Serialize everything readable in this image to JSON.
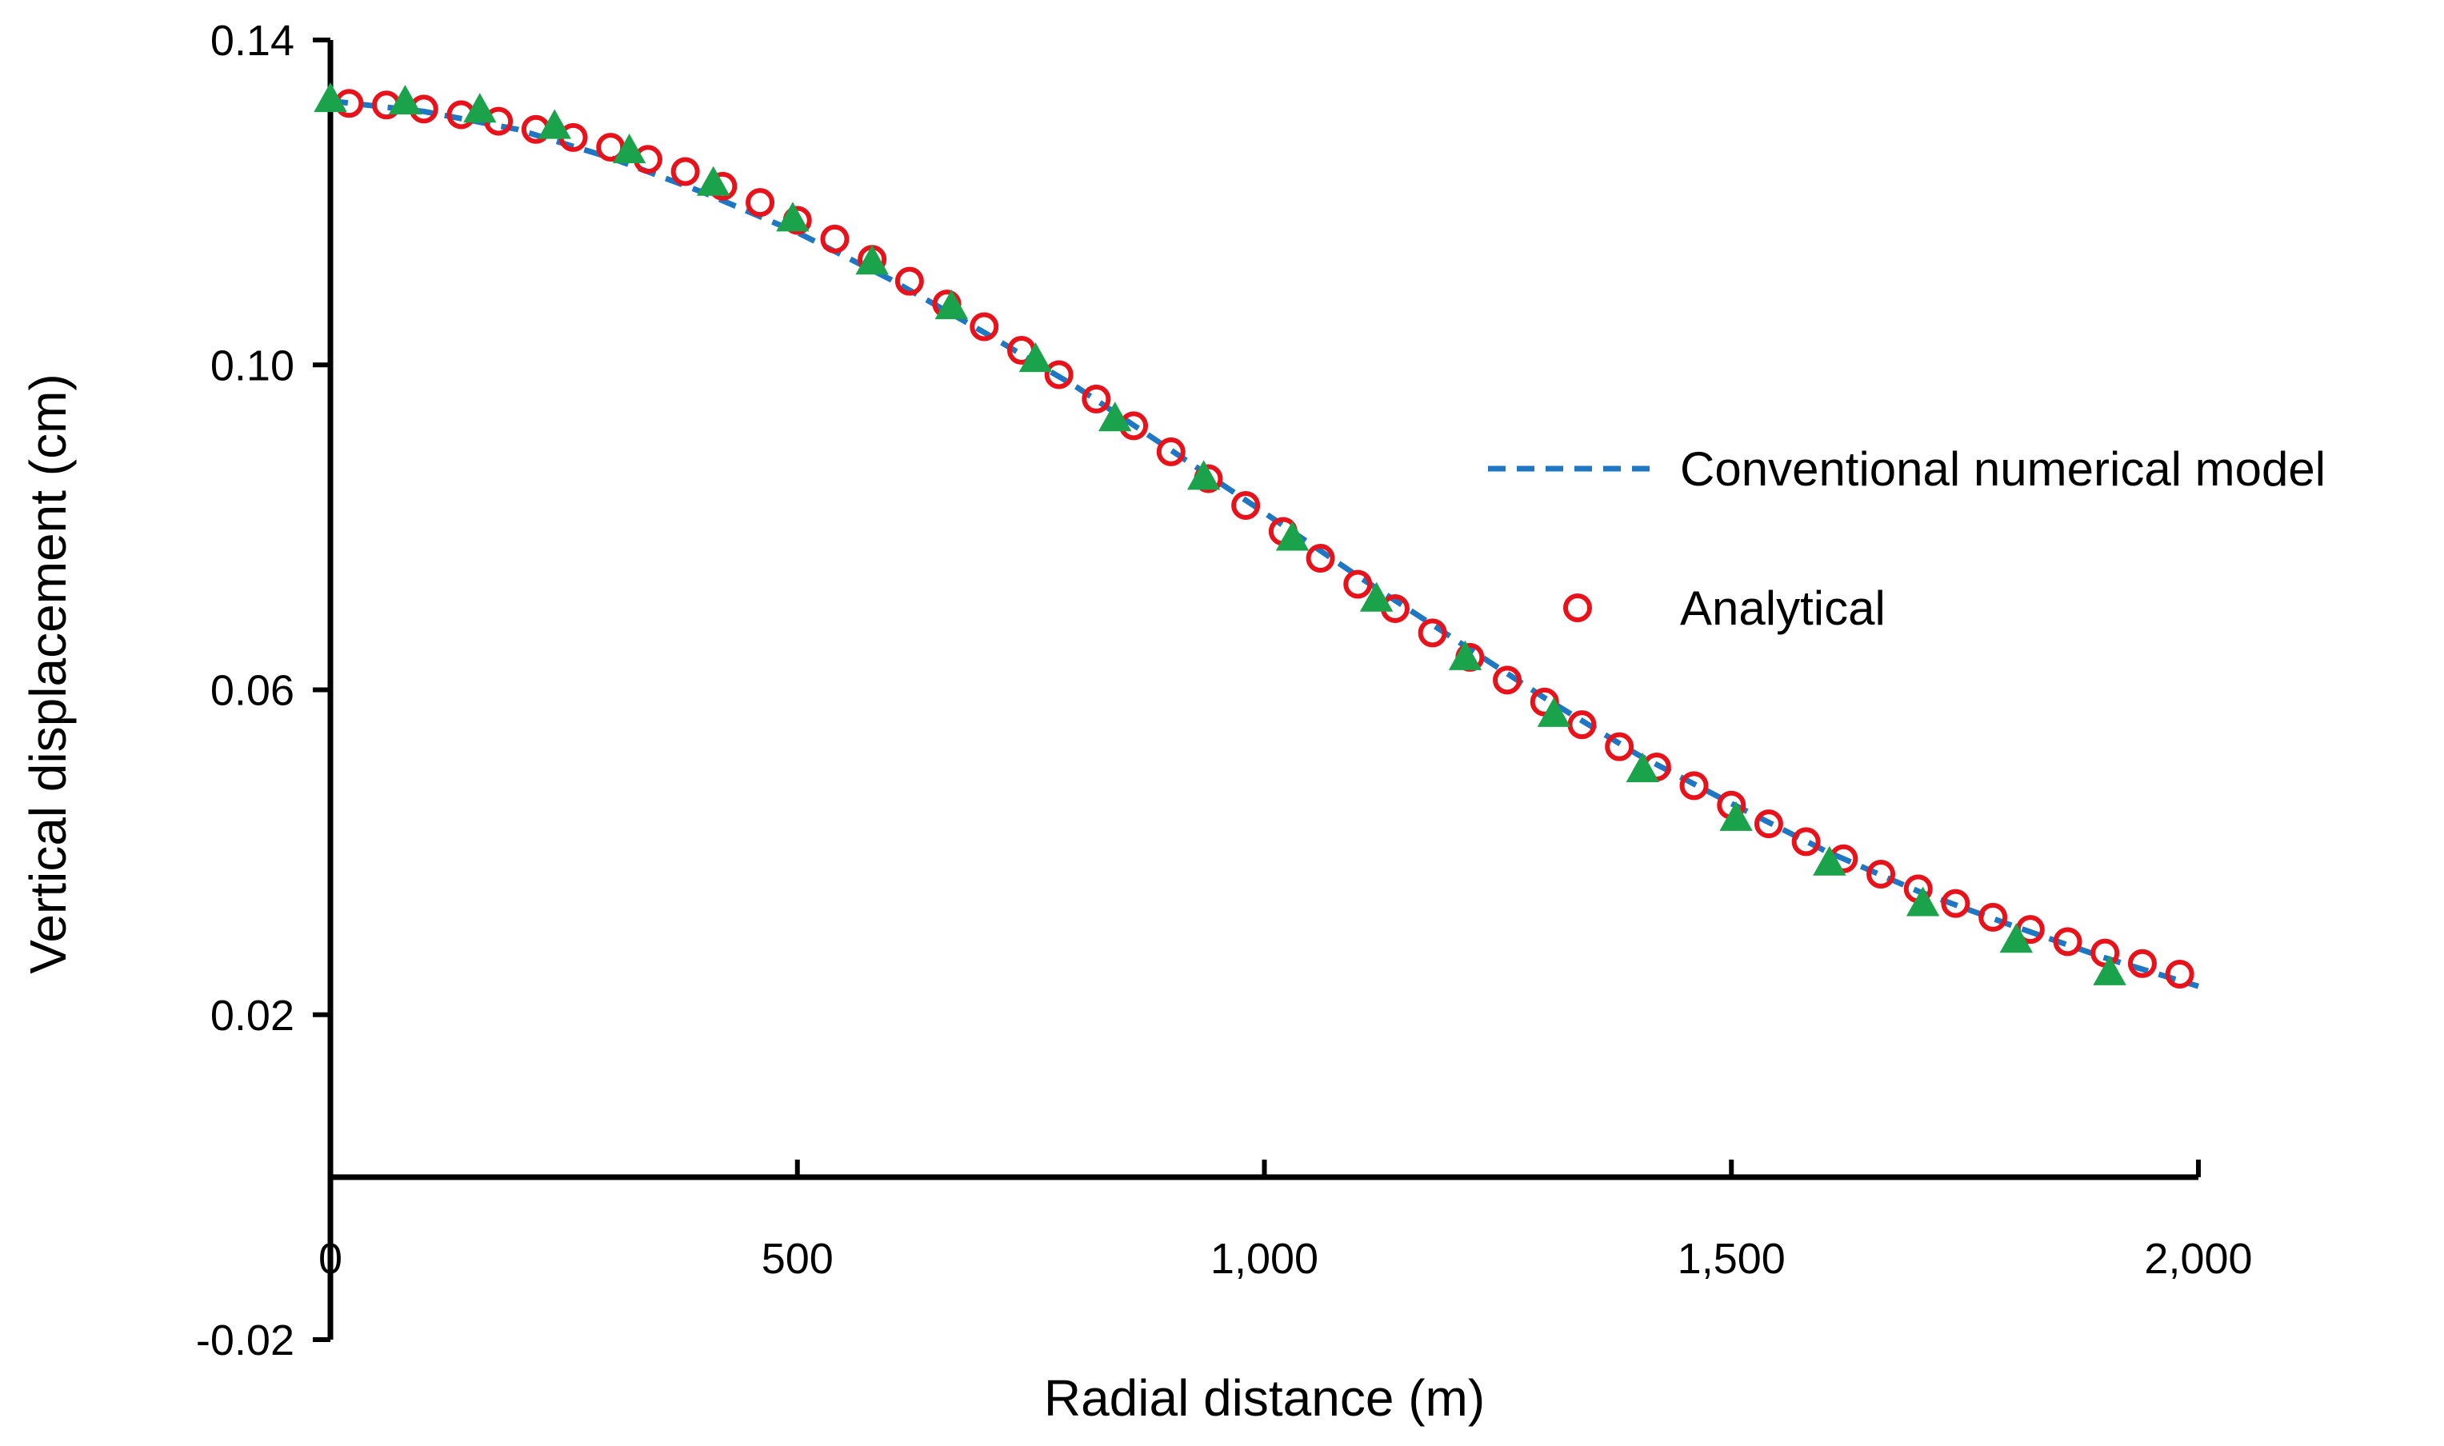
{
  "chart_data": {
    "type": "line",
    "title": "",
    "xlabel": "Radial distance (m)",
    "ylabel": "Vertical displacement (cm)",
    "xlim": [
      0,
      2000
    ],
    "ylim": [
      -0.02,
      0.14
    ],
    "x_crosses_at": 0,
    "xticks": [
      0,
      500,
      1000,
      1500,
      2000
    ],
    "xtick_labels": [
      "0",
      "500",
      "1,000",
      "1,500",
      "2,000"
    ],
    "yticks": [
      -0.02,
      0.02,
      0.06,
      0.1,
      0.14
    ],
    "ytick_labels": [
      "-0.02",
      "0.02",
      "0.06",
      "0.10",
      "0.14"
    ],
    "grid": false,
    "legend_position": "right",
    "series": [
      {
        "name": "Conventional numerical model",
        "style": "dashed-line",
        "color": "#1f77c4",
        "x": [
          0,
          100,
          200,
          300,
          400,
          500,
          600,
          700,
          800,
          900,
          1000,
          1100,
          1200,
          1300,
          1400,
          1500,
          1600,
          1700,
          1800,
          1900,
          2000
        ],
        "y": [
          0.1325,
          0.1312,
          0.129,
          0.1255,
          0.1212,
          0.1163,
          0.1105,
          0.104,
          0.0972,
          0.0895,
          0.0818,
          0.074,
          0.0665,
          0.059,
          0.052,
          0.046,
          0.0402,
          0.0352,
          0.031,
          0.027,
          0.0235
        ]
      },
      {
        "name": "Analytical",
        "style": "open-circle",
        "color": "#e8121b",
        "x": [
          20,
          60,
          100,
          140,
          180,
          220,
          260,
          300,
          340,
          380,
          420,
          460,
          500,
          540,
          580,
          620,
          660,
          700,
          740,
          780,
          820,
          860,
          900,
          940,
          980,
          1020,
          1060,
          1100,
          1140,
          1180,
          1220,
          1260,
          1300,
          1340,
          1380,
          1420,
          1460,
          1500,
          1540,
          1580,
          1620,
          1660,
          1700,
          1740,
          1780,
          1820,
          1860,
          1900,
          1940,
          1980
        ],
        "y": [
          0.1322,
          0.132,
          0.1315,
          0.1308,
          0.13,
          0.129,
          0.128,
          0.1268,
          0.1253,
          0.1238,
          0.122,
          0.12,
          0.1178,
          0.1155,
          0.113,
          0.1103,
          0.1075,
          0.1047,
          0.1018,
          0.0988,
          0.0958,
          0.0925,
          0.0893,
          0.086,
          0.0827,
          0.0795,
          0.0762,
          0.073,
          0.07,
          0.067,
          0.064,
          0.0612,
          0.0585,
          0.0557,
          0.053,
          0.0505,
          0.0482,
          0.0458,
          0.0435,
          0.0413,
          0.0392,
          0.0373,
          0.0355,
          0.0337,
          0.032,
          0.0305,
          0.029,
          0.0276,
          0.0263,
          0.025
        ]
      },
      {
        "name": "",
        "style": "filled-triangle",
        "color": "#1aa34a",
        "x": [
          0,
          80,
          160,
          240,
          320,
          410,
          495,
          580,
          665,
          755,
          840,
          935,
          1030,
          1120,
          1215,
          1310,
          1405,
          1505,
          1605,
          1705,
          1805,
          1905
        ],
        "y": [
          0.1325,
          0.1322,
          0.1312,
          0.1292,
          0.1262,
          0.1222,
          0.1178,
          0.1125,
          0.107,
          0.1005,
          0.0932,
          0.086,
          0.0785,
          0.071,
          0.0638,
          0.0568,
          0.05,
          0.044,
          0.0385,
          0.0335,
          0.029,
          0.025
        ]
      }
    ]
  }
}
